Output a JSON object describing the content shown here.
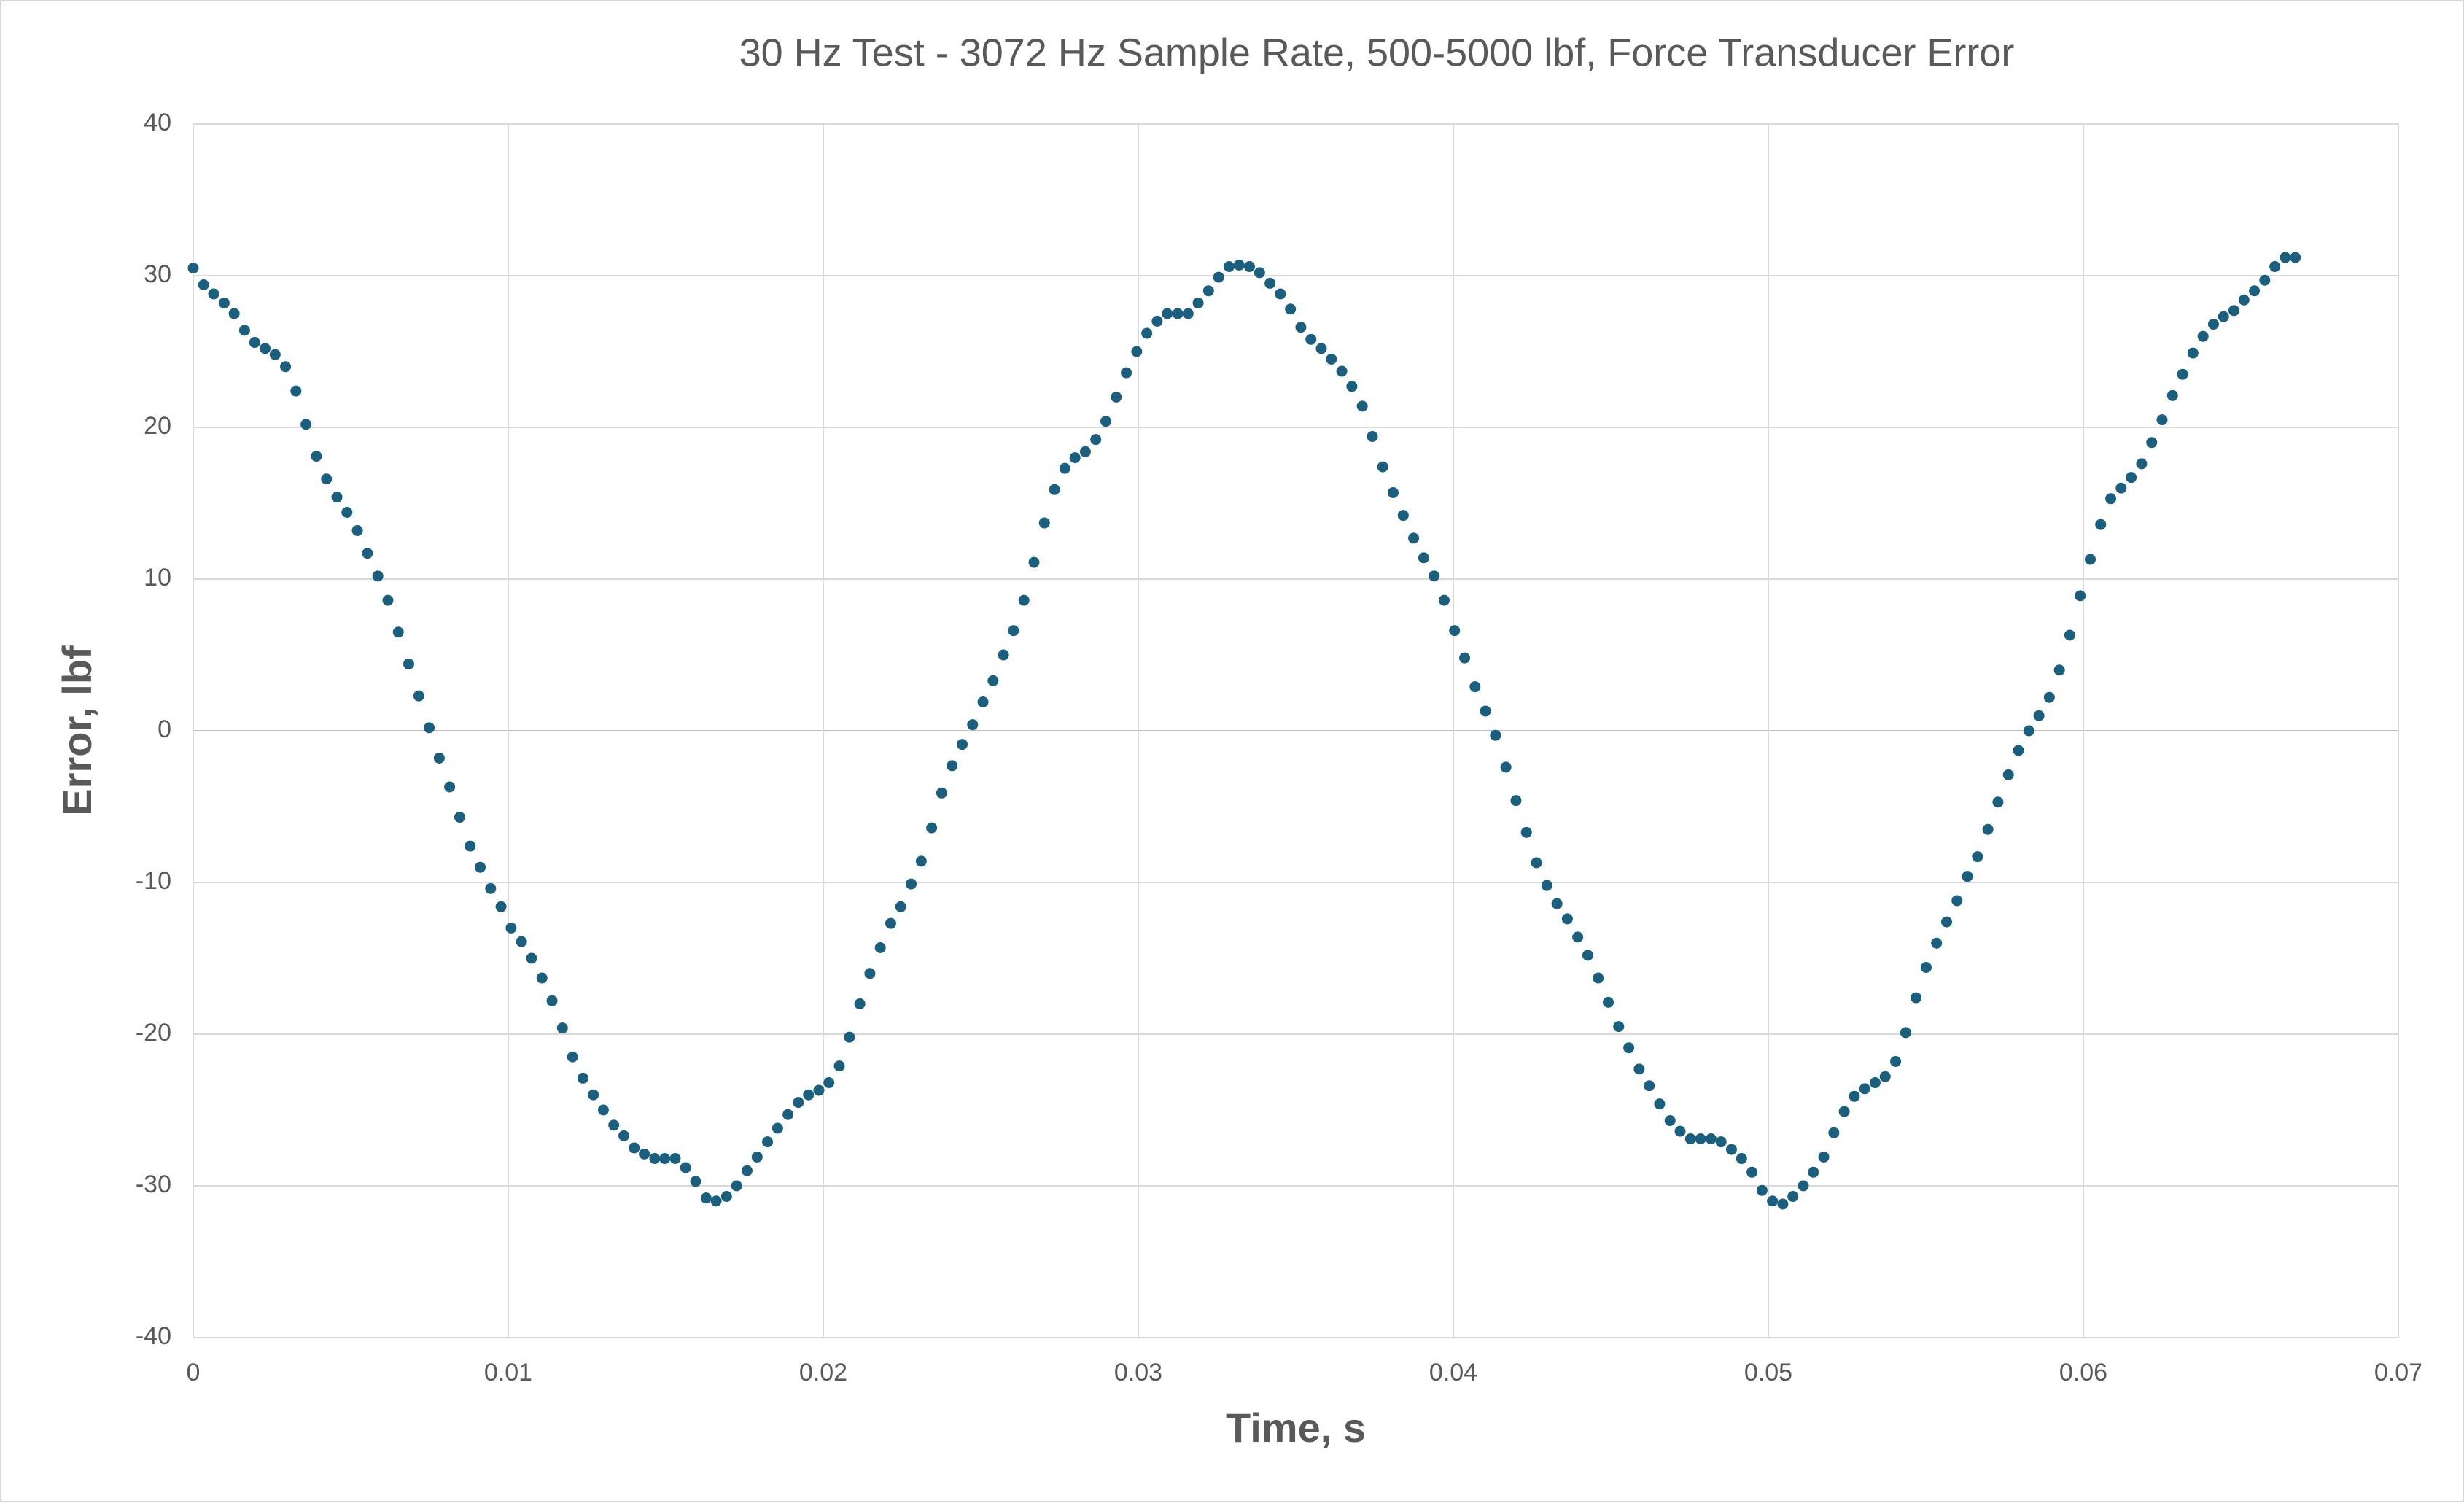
{
  "chart_data": {
    "type": "scatter",
    "title": "30 Hz Test - 3072 Hz Sample Rate, 500-5000 lbf, Force Transducer Error",
    "x_label": "Time, s",
    "y_label": "Error, lbf",
    "xlim": [
      0,
      0.07
    ],
    "xticks": [
      0,
      0.01,
      0.02,
      0.03,
      0.04,
      0.05,
      0.06,
      0.07
    ],
    "ylim": [
      -40,
      40
    ],
    "yticks": [
      -40,
      -30,
      -20,
      -10,
      0,
      10,
      20,
      30,
      40
    ],
    "grid": true,
    "color": "#1a5f7e",
    "x": [
      0,
      0.00033,
      0.00065,
      0.00098,
      0.0013,
      0.00163,
      0.00195,
      0.00228,
      0.0026,
      0.00293,
      0.00326,
      0.00358,
      0.00391,
      0.00423,
      0.00456,
      0.00488,
      0.00521,
      0.00553,
      0.00586,
      0.00618,
      0.00651,
      0.00684,
      0.00716,
      0.00749,
      0.00781,
      0.00814,
      0.00846,
      0.00879,
      0.00911,
      0.00944,
      0.00977,
      0.01009,
      0.01042,
      0.01074,
      0.01107,
      0.01139,
      0.01172,
      0.01204,
      0.01237,
      0.0127,
      0.01302,
      0.01335,
      0.01367,
      0.014,
      0.01432,
      0.01465,
      0.01497,
      0.0153,
      0.01563,
      0.01595,
      0.01628,
      0.0166,
      0.01693,
      0.01725,
      0.01758,
      0.0179,
      0.01823,
      0.01855,
      0.01888,
      0.01921,
      0.01953,
      0.01986,
      0.02018,
      0.02051,
      0.02083,
      0.02116,
      0.02148,
      0.02181,
      0.02214,
      0.02246,
      0.02279,
      0.02311,
      0.02344,
      0.02376,
      0.02409,
      0.02441,
      0.02474,
      0.02507,
      0.02539,
      0.02572,
      0.02604,
      0.02637,
      0.02669,
      0.02702,
      0.02734,
      0.02767,
      0.02799,
      0.02832,
      0.02865,
      0.02897,
      0.0293,
      0.02962,
      0.02995,
      0.03027,
      0.0306,
      0.03092,
      0.03125,
      0.03158,
      0.0319,
      0.03223,
      0.03255,
      0.03288,
      0.0332,
      0.03353,
      0.03385,
      0.03418,
      0.03451,
      0.03483,
      0.03516,
      0.03548,
      0.03581,
      0.03613,
      0.03646,
      0.03678,
      0.03711,
      0.03743,
      0.03776,
      0.03809,
      0.03841,
      0.03874,
      0.03906,
      0.03939,
      0.03971,
      0.04004,
      0.04036,
      0.04069,
      0.04102,
      0.04134,
      0.04167,
      0.04199,
      0.04232,
      0.04264,
      0.04297,
      0.04329,
      0.04362,
      0.04395,
      0.04427,
      0.0446,
      0.04492,
      0.04525,
      0.04557,
      0.0459,
      0.04622,
      0.04655,
      0.04688,
      0.0472,
      0.04753,
      0.04785,
      0.04818,
      0.0485,
      0.04883,
      0.04915,
      0.04948,
      0.0498,
      0.05013,
      0.05046,
      0.05078,
      0.05111,
      0.05143,
      0.05176,
      0.05208,
      0.05241,
      0.05273,
      0.05306,
      0.05339,
      0.05371,
      0.05404,
      0.05436,
      0.05469,
      0.05501,
      0.05534,
      0.05566,
      0.05599,
      0.05632,
      0.05664,
      0.05697,
      0.05729,
      0.05762,
      0.05794,
      0.05827,
      0.05859,
      0.05892,
      0.05924,
      0.05957,
      0.0599,
      0.06022,
      0.06055,
      0.06087,
      0.0612,
      0.06152,
      0.06185,
      0.06217,
      0.0625,
      0.06283,
      0.06315,
      0.06348,
      0.0638,
      0.06413,
      0.06445,
      0.06478,
      0.0651,
      0.06543,
      0.06576,
      0.06608,
      0.06641,
      0.06673
    ],
    "values": [
      30.5,
      29.4,
      28.8,
      28.2,
      27.5,
      26.4,
      25.6,
      25.2,
      24.8,
      24.0,
      22.4,
      20.2,
      18.1,
      16.6,
      15.4,
      14.4,
      13.2,
      11.7,
      10.2,
      8.6,
      6.5,
      4.4,
      2.3,
      0.2,
      -1.8,
      -3.7,
      -5.7,
      -7.6,
      -9.0,
      -10.4,
      -11.6,
      -13.0,
      -13.9,
      -15.0,
      -16.3,
      -17.8,
      -19.6,
      -21.5,
      -22.9,
      -24.0,
      -25.0,
      -26.0,
      -26.7,
      -27.5,
      -27.9,
      -28.2,
      -28.2,
      -28.2,
      -28.8,
      -29.7,
      -30.8,
      -31.0,
      -30.7,
      -30.0,
      -29.0,
      -28.1,
      -27.1,
      -26.2,
      -25.3,
      -24.5,
      -24.0,
      -23.7,
      -23.2,
      -22.1,
      -20.2,
      -18.0,
      -16.0,
      -14.3,
      -12.7,
      -11.6,
      -10.1,
      -8.6,
      -6.4,
      -4.1,
      -2.3,
      -0.9,
      0.4,
      1.9,
      3.3,
      5.0,
      6.6,
      8.6,
      11.1,
      13.7,
      15.9,
      17.3,
      18.0,
      18.4,
      19.2,
      20.4,
      22.0,
      23.6,
      25.0,
      26.2,
      27.0,
      27.5,
      27.5,
      27.5,
      28.2,
      29.0,
      29.9,
      30.6,
      30.7,
      30.6,
      30.2,
      29.5,
      28.8,
      27.8,
      26.6,
      25.8,
      25.2,
      24.5,
      23.7,
      22.7,
      21.4,
      19.4,
      17.4,
      15.7,
      14.2,
      12.7,
      11.4,
      10.2,
      8.6,
      6.6,
      4.8,
      2.9,
      1.3,
      -0.3,
      -2.4,
      -4.6,
      -6.7,
      -8.7,
      -10.2,
      -11.4,
      -12.4,
      -13.6,
      -14.8,
      -16.3,
      -17.9,
      -19.5,
      -20.9,
      -22.3,
      -23.4,
      -24.6,
      -25.7,
      -26.4,
      -26.9,
      -26.9,
      -26.9,
      -27.1,
      -27.6,
      -28.2,
      -29.1,
      -30.3,
      -31.0,
      -31.2,
      -30.7,
      -30.0,
      -29.1,
      -28.1,
      -26.5,
      -25.1,
      -24.1,
      -23.6,
      -23.2,
      -22.8,
      -21.8,
      -19.9,
      -17.6,
      -15.6,
      -14.0,
      -12.6,
      -11.2,
      -9.6,
      -8.3,
      -6.5,
      -4.7,
      -2.9,
      -1.3,
      0.0,
      1.0,
      2.2,
      4.0,
      6.3,
      8.9,
      11.3,
      13.6,
      15.3,
      16.0,
      16.7,
      17.6,
      19.0,
      20.5,
      22.1,
      23.5,
      24.9,
      26.0,
      26.8,
      27.3,
      27.7,
      28.4,
      29.0,
      29.7,
      30.6,
      31.2,
      31.2
    ]
  }
}
